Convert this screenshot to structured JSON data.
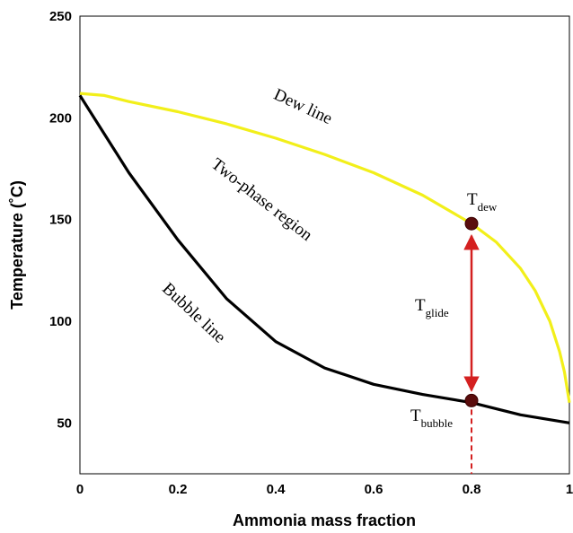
{
  "chart_data": {
    "type": "line",
    "xlabel": "Ammonia mass fraction",
    "ylabel": "Temperature (˚C)",
    "xlim": [
      0,
      1
    ],
    "ylim": [
      25,
      250
    ],
    "x_ticks": [
      "0",
      "0.2",
      "0.4",
      "0.6",
      "0.8",
      "1"
    ],
    "y_ticks": [
      "50",
      "100",
      "150",
      "200",
      "250"
    ],
    "grid": false,
    "series": [
      {
        "name": "Dew line",
        "color": "#f2ef1a",
        "x": [
          0,
          0.05,
          0.1,
          0.2,
          0.3,
          0.4,
          0.5,
          0.6,
          0.7,
          0.8,
          0.85,
          0.9,
          0.93,
          0.96,
          0.98,
          0.99,
          1.0
        ],
        "y": [
          212,
          211,
          208,
          203,
          197,
          190,
          182,
          173,
          162,
          148,
          139,
          126,
          115,
          100,
          85,
          75,
          60
        ]
      },
      {
        "name": "Bubble line",
        "color": "#000000",
        "x": [
          0,
          0.05,
          0.1,
          0.2,
          0.3,
          0.4,
          0.5,
          0.6,
          0.7,
          0.8,
          0.9,
          1.0
        ],
        "y": [
          211,
          192,
          173,
          140,
          111,
          90,
          77,
          69,
          64,
          60,
          54,
          50
        ]
      }
    ],
    "points": [
      {
        "name": "T_dew",
        "x": 0.8,
        "y": 148
      },
      {
        "name": "T_bubble",
        "x": 0.8,
        "y": 61
      }
    ],
    "glide": {
      "x": 0.8,
      "y_top": 142,
      "y_bottom": 66,
      "color": "#d42020"
    },
    "dashed_drop": {
      "x": 0.8,
      "y_from": 61,
      "y_to": 25
    },
    "annotations": {
      "dew_line": "Dew line",
      "two_phase": "Two-phase region",
      "bubble_line": "Bubble line",
      "t_dew_main": "T",
      "t_dew_sub": "dew",
      "t_glide_main": "T",
      "t_glide_sub": "glide",
      "t_bubble_main": "T",
      "t_bubble_sub": "bubble"
    }
  }
}
